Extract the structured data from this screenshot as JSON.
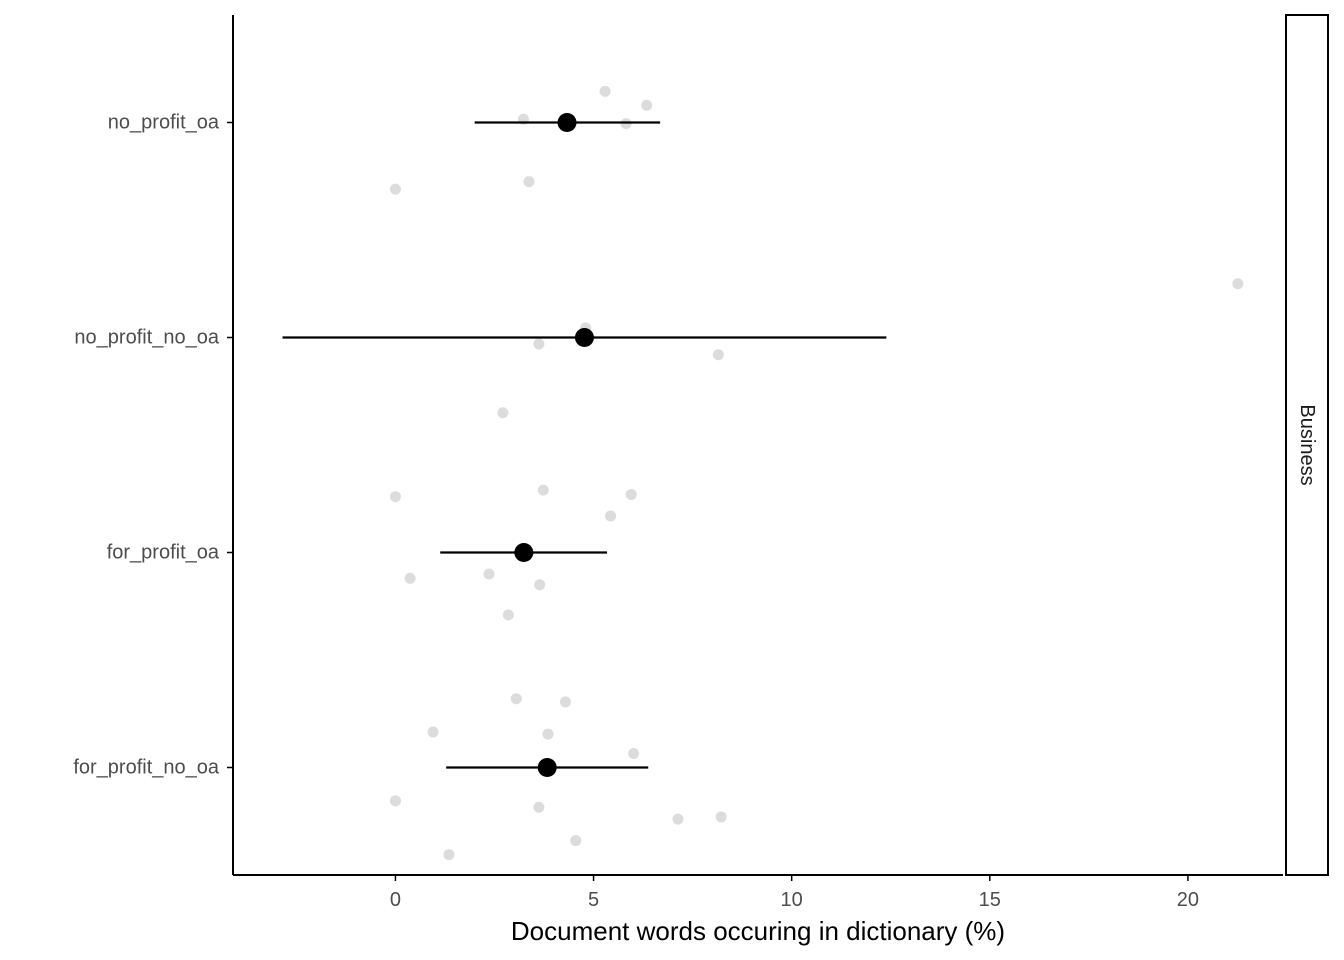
{
  "chart_data": {
    "type": "scatter",
    "orientation": "horizontal",
    "title": "",
    "xlabel": "Document words occuring in dictionary (%)",
    "ylabel": "",
    "facet_label": "Business",
    "xlim": [
      -4.1,
      22.4
    ],
    "x_ticks": [
      0,
      5,
      10,
      15,
      20
    ],
    "x_tick_labels": [
      "0",
      "5",
      "10",
      "15",
      "20"
    ],
    "categories": [
      "no_profit_oa",
      "no_profit_no_oa",
      "for_profit_oa",
      "for_profit_no_oa"
    ],
    "summary": [
      {
        "category": "no_profit_oa",
        "mean": 4.33,
        "lower": 2.0,
        "upper": 6.68
      },
      {
        "category": "no_profit_no_oa",
        "mean": 4.77,
        "lower": -2.85,
        "upper": 12.39
      },
      {
        "category": "for_profit_oa",
        "mean": 3.24,
        "lower": 1.13,
        "upper": 5.34
      },
      {
        "category": "for_profit_no_oa",
        "mean": 3.83,
        "lower": 1.28,
        "upper": 6.38
      }
    ],
    "observations": [
      {
        "category": "no_profit_oa",
        "values": [
          5.29,
          6.34,
          3.23,
          5.82,
          3.37,
          0.0
        ],
        "jitter": [
          0.29,
          0.16,
          0.03,
          -0.01,
          -0.55,
          -0.62
        ]
      },
      {
        "category": "no_profit_no_oa",
        "values": [
          21.26,
          4.8,
          3.62,
          8.15,
          2.71
        ],
        "jitter": [
          0.5,
          0.09,
          -0.06,
          -0.16,
          -0.7
        ]
      },
      {
        "category": "for_profit_oa",
        "values": [
          0.0,
          3.73,
          5.95,
          5.43,
          2.36,
          0.37,
          3.64,
          2.85
        ],
        "jitter": [
          0.52,
          0.58,
          0.54,
          0.34,
          -0.2,
          -0.24,
          -0.3,
          -0.58
        ]
      },
      {
        "category": "for_profit_no_oa",
        "values": [
          3.05,
          4.29,
          0.95,
          3.85,
          6.01,
          0.0,
          3.62,
          7.13,
          8.22,
          4.55,
          1.35
        ],
        "jitter": [
          0.64,
          0.61,
          0.33,
          0.31,
          0.13,
          -0.31,
          -0.37,
          -0.48,
          -0.46,
          -0.68,
          -0.81
        ]
      }
    ],
    "grid": false,
    "legend": "none",
    "colors": {
      "points": "#d6d6d6",
      "summary": "#000000",
      "axis": "#000000"
    }
  }
}
